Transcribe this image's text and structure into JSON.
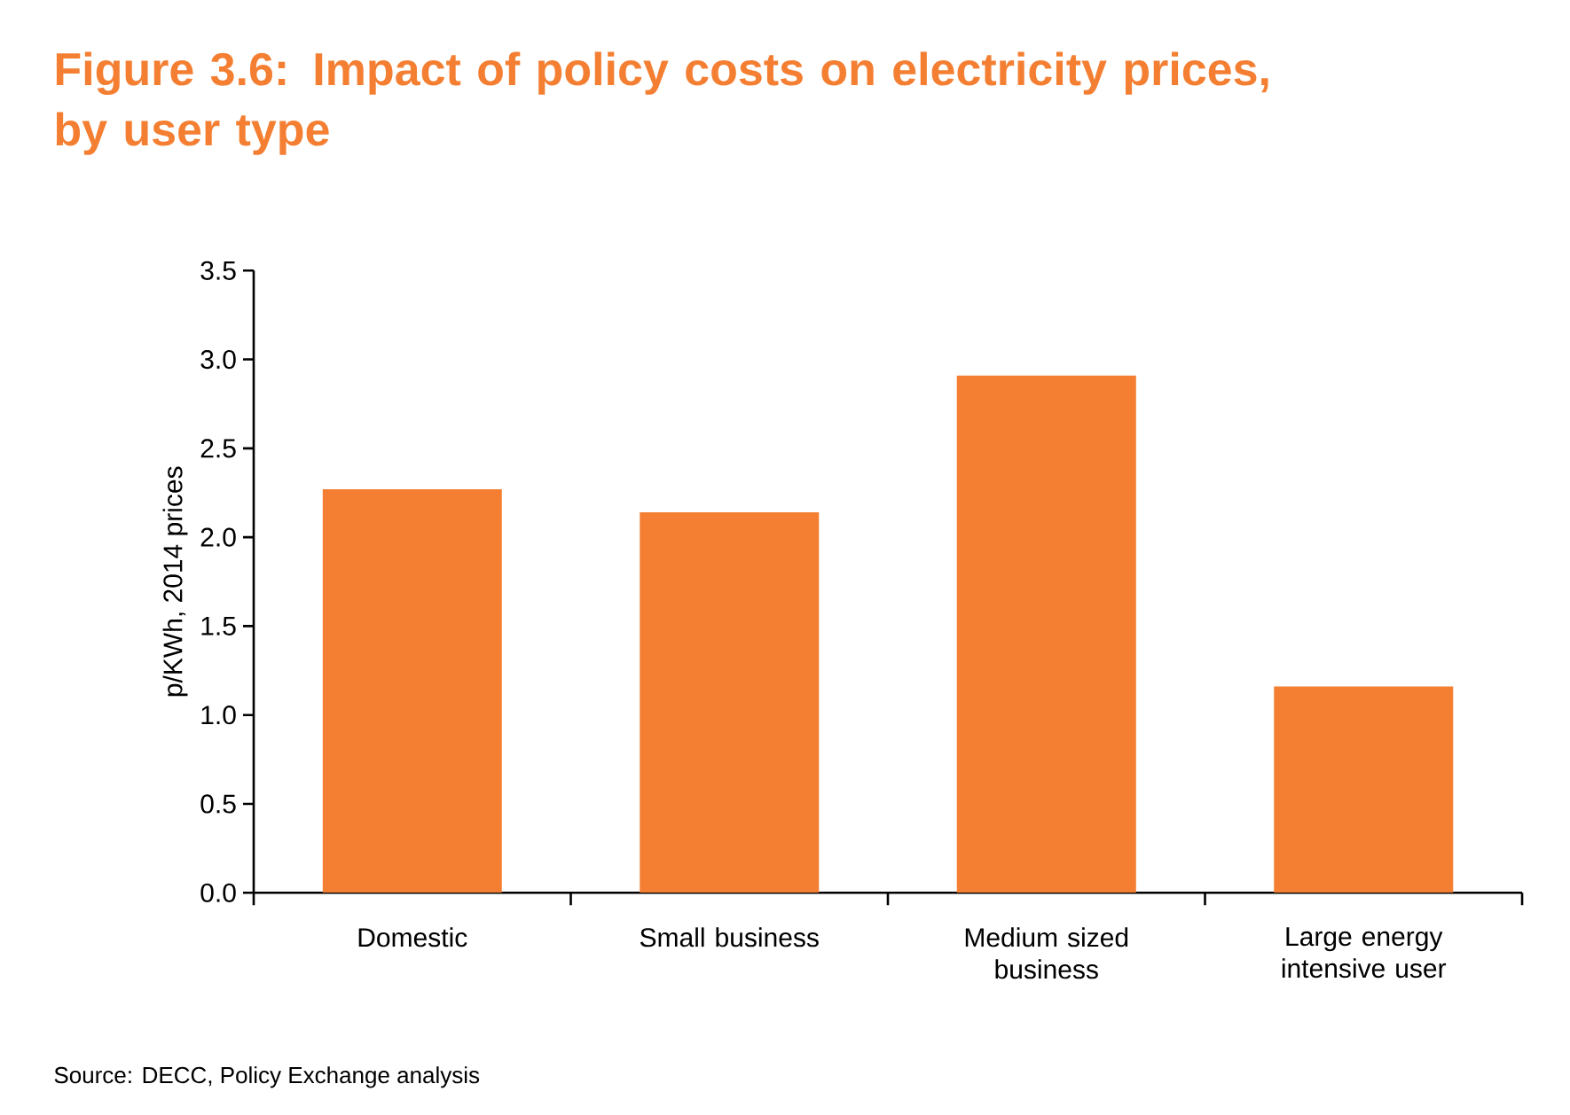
{
  "chart_data": {
    "type": "bar",
    "title": "Figure 3.6: Impact of policy costs on electricity prices, by user type",
    "ylabel": "p/KWh, 2014 prices",
    "categories": [
      "Domestic",
      "Small business",
      "Medium sized business",
      "Large energy intensive user"
    ],
    "values": [
      2.27,
      2.14,
      2.91,
      1.16
    ],
    "color": "#f47f32",
    "ylim": [
      0,
      3.5
    ],
    "yticks": [
      {
        "value": 0,
        "label": "0.0"
      },
      {
        "value": 0.5,
        "label": "0.5"
      },
      {
        "value": 1,
        "label": "1.0"
      },
      {
        "value": 1.5,
        "label": "1.5"
      },
      {
        "value": 2,
        "label": "2.0"
      },
      {
        "value": 2.5,
        "label": "2.5"
      },
      {
        "value": 3,
        "label": "3.0"
      },
      {
        "value": 3.5,
        "label": "3.5"
      }
    ],
    "annotations": [
      "Source: DECC, Policy Exchange analysis"
    ]
  }
}
